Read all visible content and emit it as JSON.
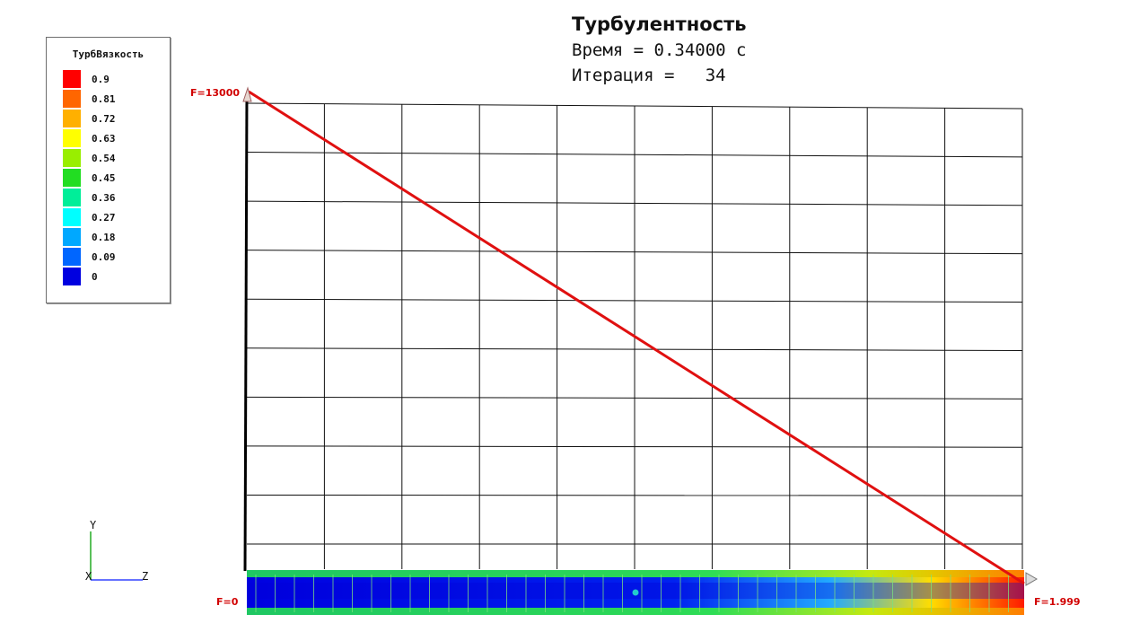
{
  "title": {
    "main": "Турбулентность",
    "time_line": "Время = 0.34000 с",
    "iteration_line": "Итерация =   34"
  },
  "legend": {
    "title": "ТурбВязкость",
    "items": [
      {
        "label": "0.9",
        "color": "#ff0000"
      },
      {
        "label": "0.81",
        "color": "#ff6600"
      },
      {
        "label": "0.72",
        "color": "#ffb000"
      },
      {
        "label": "0.63",
        "color": "#ffff00"
      },
      {
        "label": "0.54",
        "color": "#99ee00"
      },
      {
        "label": "0.45",
        "color": "#22dd22"
      },
      {
        "label": "0.36",
        "color": "#00ee99"
      },
      {
        "label": "0.27",
        "color": "#00ffff"
      },
      {
        "label": "0.18",
        "color": "#00a8ff"
      },
      {
        "label": "0.09",
        "color": "#0066ff"
      },
      {
        "label": "0",
        "color": "#0000e0"
      }
    ]
  },
  "axes": {
    "y_label": "Y",
    "x_label": "X",
    "z_label": "Z"
  },
  "loads": {
    "top": "F=13000",
    "bottom_left": "F=0",
    "bottom_right": "F=1.999"
  },
  "colors": {
    "grid": "#111111",
    "load_line": "#e01010",
    "force_text": "#d10000"
  }
}
